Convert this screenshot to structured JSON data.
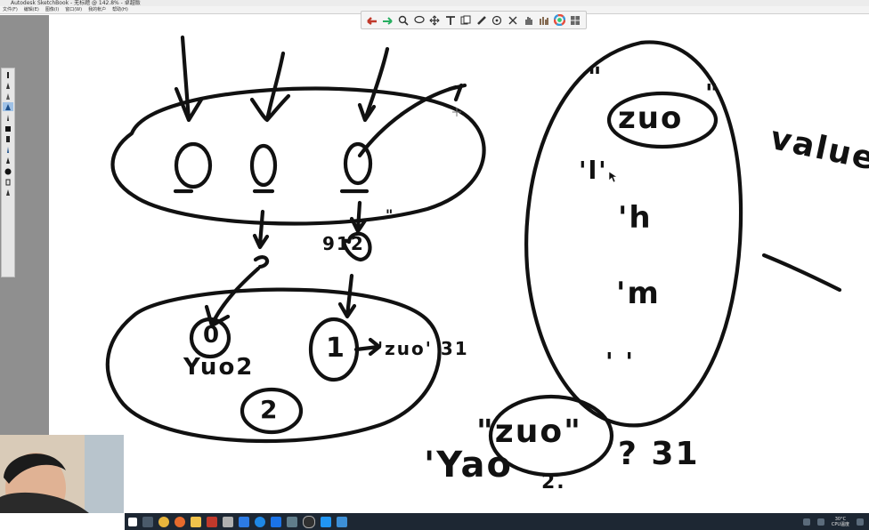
{
  "window": {
    "title": "Autodesk SketchBook - 无标题 @ 142.8% - 卓越版",
    "menu": [
      "文件(F)",
      "编辑(E)",
      "图像(I)",
      "窗口(W)",
      "我的帐户",
      "帮助(H)"
    ]
  },
  "toolbar": {
    "tools": [
      "undo-icon",
      "redo-icon",
      "zoom-icon",
      "lasso-icon",
      "move-icon",
      "text-icon",
      "copy-icon",
      "ruler-icon",
      "ellipse-guide-icon",
      "symmetry-icon",
      "hand-icon",
      "brush-library-icon",
      "color-wheel-icon",
      "layers-icon"
    ]
  },
  "palette": {
    "tools": [
      "brush-1",
      "brush-2",
      "brush-3",
      "brush-4",
      "brush-5",
      "brush-6",
      "brush-7",
      "brush-8",
      "brush-9",
      "brush-10",
      "brush-11",
      "brush-12"
    ],
    "active_index": 3
  },
  "sketch": {
    "zero_a": "0",
    "zero_b": "0",
    "zero_c": "0",
    "label_912": "912",
    "label_quote": "\"",
    "circle_zero": "0",
    "label_yuo2": "Yuo2",
    "circle_one": "1",
    "label_zuo31": "'zuo' 31",
    "circle_two": "2",
    "label_one_quote": "1",
    "oval_open_quote": "\"",
    "oval_close_quote": "\"",
    "oval_word": "zuo",
    "oval_line1": "'l'",
    "oval_line2": "'h",
    "oval_line3": "'m",
    "oval_line4": "' '",
    "value_word": "value",
    "bottom_word": "\"zuo\"",
    "question_num": "? 31",
    "bottom_left": "'Yao",
    "bottom_small": "2."
  },
  "taskbar": {
    "apps": [
      "start-icon",
      "search-icon",
      "chrome-icon",
      "firefox-icon",
      "explorer-icon",
      "media-icon",
      "sketchbook-icon",
      "store-icon",
      "edge-icon",
      "tencent-icon",
      "settings-icon",
      "obs-icon",
      "ie-icon",
      "mail-icon"
    ],
    "weather": "30°C",
    "weather_label": "CPU温度"
  },
  "colors": {
    "ink": "#111111",
    "taskbar": "#1d2733",
    "workspace": "#8f8f8f"
  }
}
